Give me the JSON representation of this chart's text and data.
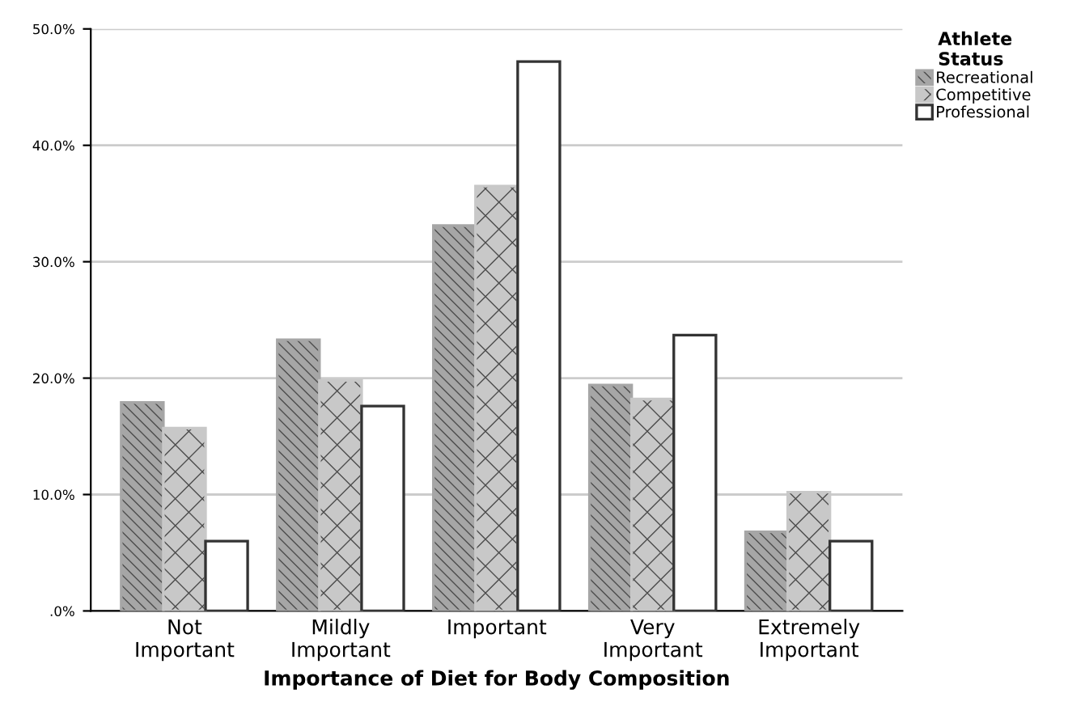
{
  "chart_data": {
    "type": "bar",
    "xlabel": "Importance of Diet for Body Composition",
    "legend_title": "Athlete\nStatus",
    "categories": [
      "Not\nImportant",
      "Mildly\nImportant",
      "Important",
      "Very\nImportant",
      "Extremely\nImportant"
    ],
    "series": [
      {
        "name": "Recreational",
        "color": "#a6a6a6",
        "values": [
          17.9,
          23.3,
          33.1,
          19.4,
          6.8
        ]
      },
      {
        "name": "Competitive",
        "color": "#c8c8c8",
        "values": [
          15.7,
          19.8,
          36.5,
          18.2,
          10.2
        ]
      },
      {
        "name": "Professional",
        "color": "#ffffff",
        "values": [
          6.0,
          17.6,
          47.2,
          23.7,
          6.0
        ]
      }
    ],
    "ylim": [
      0,
      50
    ],
    "yticks": [
      {
        "value": 0,
        "label": ".0%"
      },
      {
        "value": 10,
        "label": "10.0%"
      },
      {
        "value": 20,
        "label": "20.0%"
      },
      {
        "value": 30,
        "label": "30.0%"
      },
      {
        "value": 40,
        "label": "40.0%"
      },
      {
        "value": 50,
        "label": "50.0%"
      }
    ],
    "grid": "y",
    "legend": "top right"
  }
}
